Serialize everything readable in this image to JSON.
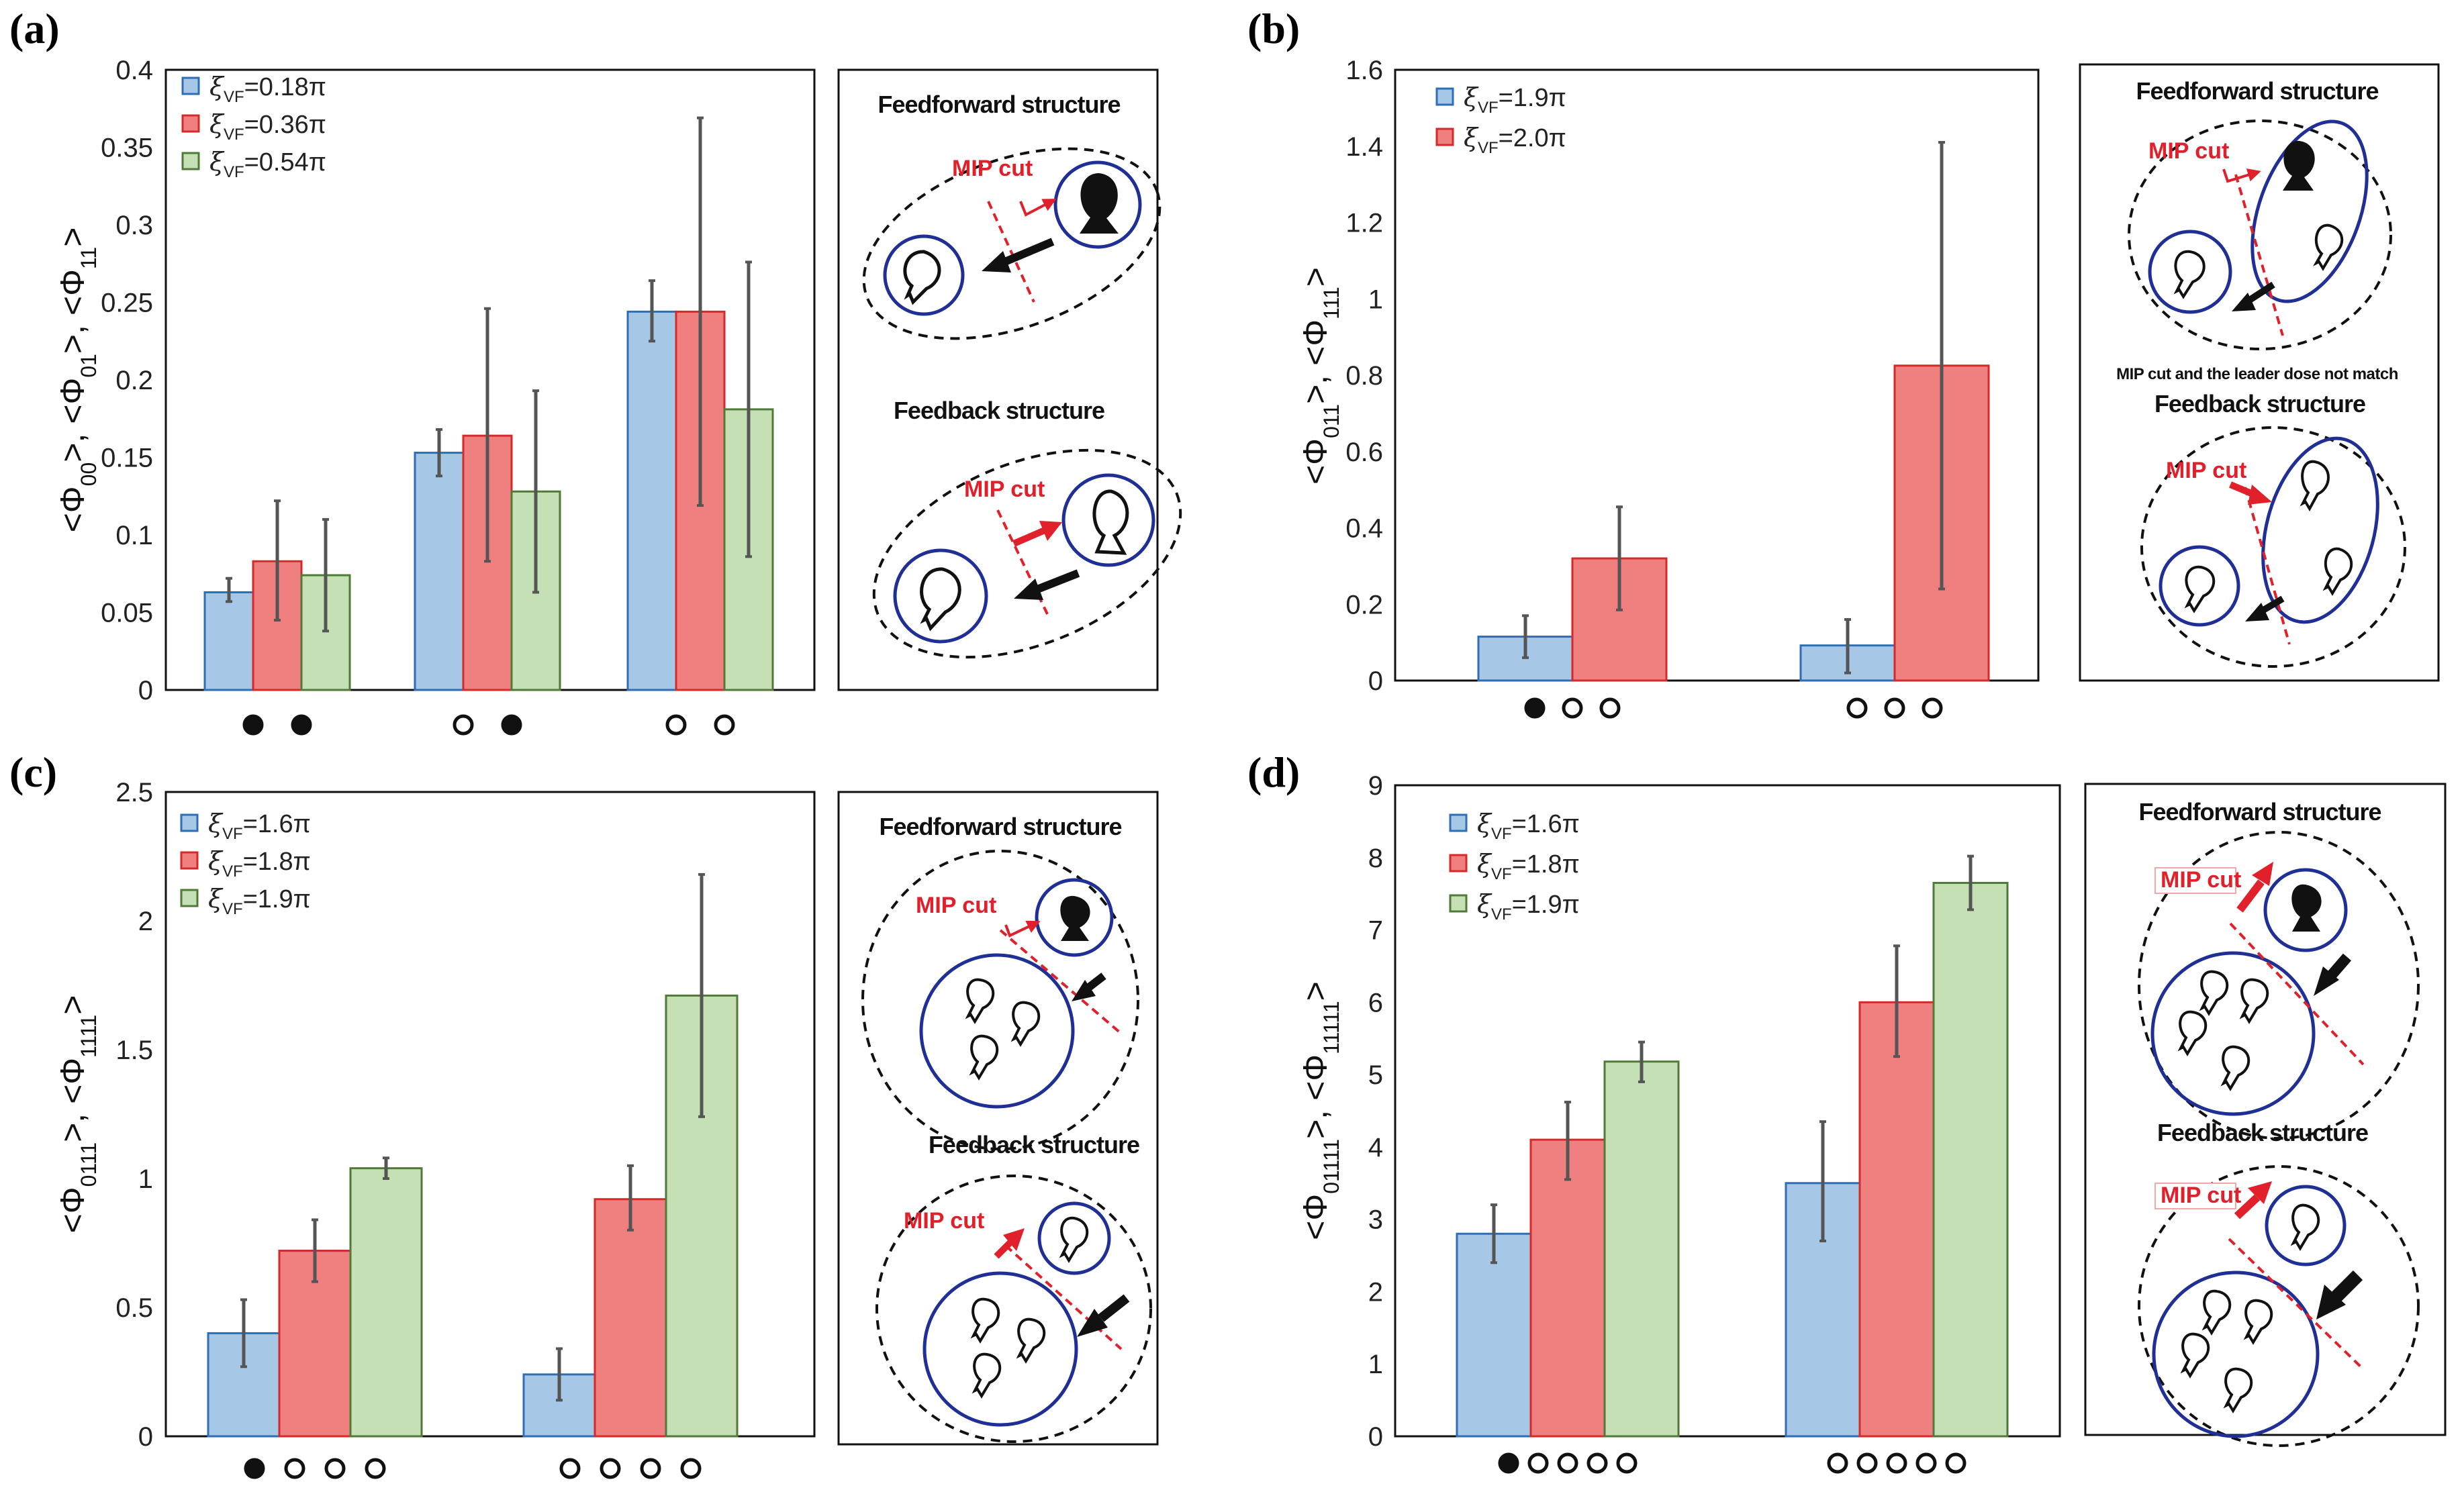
{
  "colors": {
    "blue": "#a6c8e6",
    "blue_edge": "#2f6eb5",
    "red": "#f08080",
    "red_edge": "#d42a2a",
    "green": "#c5e0b4",
    "green_edge": "#4f7a38",
    "error": "#555555",
    "diagram_circle": "#1f2f96",
    "mip": "#e0202a"
  },
  "panels": {
    "a": {
      "letter": "(a)",
      "legend_prefix": "ξ",
      "legend_sub": "VF",
      "ylabel": [
        "<Φ",
        "00",
        ">, <Φ",
        "01",
        ">, <Φ",
        "11",
        ">"
      ]
    },
    "b": {
      "letter": "(b)",
      "legend_prefix": "ξ",
      "legend_sub": "VF",
      "ylabel": [
        "<Φ",
        "011",
        ">, <Φ",
        "111",
        ">"
      ]
    },
    "c": {
      "letter": "(c)",
      "legend_prefix": "ξ",
      "legend_sub": "VF",
      "ylabel": [
        "<Φ",
        "0111",
        ">, <Φ",
        "1111",
        ">"
      ]
    },
    "d": {
      "letter": "(d)",
      "legend_prefix": "ξ",
      "legend_sub": "VF",
      "ylabel": [
        "<Φ",
        "01111",
        ">, <Φ",
        "11111",
        ">"
      ]
    }
  },
  "chart_data": [
    {
      "id": "a",
      "type": "bar",
      "ylim": [
        0,
        0.4
      ],
      "yticks": [
        "0",
        "0.05",
        "0.1",
        "0.15",
        "0.2",
        "0.25",
        "0.3",
        "0.35",
        "0.4"
      ],
      "categories": [
        [
          1,
          1
        ],
        [
          0,
          1
        ],
        [
          0,
          0
        ]
      ],
      "series": [
        {
          "name": "=0.18π",
          "color": "blue",
          "values": [
            0.063,
            0.153,
            0.244
          ],
          "errors": [
            [
              0.057,
              0.072
            ],
            [
              0.138,
              0.168
            ],
            [
              0.225,
              0.264
            ]
          ]
        },
        {
          "name": "=0.36π",
          "color": "red",
          "values": [
            0.083,
            0.164,
            0.244
          ],
          "errors": [
            [
              0.045,
              0.122
            ],
            [
              0.083,
              0.246
            ],
            [
              0.119,
              0.369
            ]
          ]
        },
        {
          "name": "=0.54π",
          "color": "green",
          "values": [
            0.074,
            0.128,
            0.181
          ],
          "errors": [
            [
              0.038,
              0.11
            ],
            [
              0.063,
              0.193
            ],
            [
              0.086,
              0.276
            ]
          ]
        }
      ]
    },
    {
      "id": "b",
      "type": "bar",
      "ylim": [
        0,
        1.6
      ],
      "yticks": [
        "0",
        "0.2",
        "0.4",
        "0.6",
        "0.8",
        "1",
        "1.2",
        "1.4",
        "1.6"
      ],
      "categories": [
        [
          1,
          0,
          0
        ],
        [
          0,
          0,
          0
        ]
      ],
      "series": [
        {
          "name": "=1.9π",
          "color": "blue",
          "values": [
            0.115,
            0.092
          ],
          "errors": [
            [
              0.06,
              0.17
            ],
            [
              0.02,
              0.16
            ]
          ]
        },
        {
          "name": "=2.0π",
          "color": "red",
          "values": [
            0.32,
            0.825
          ],
          "errors": [
            [
              0.185,
              0.455
            ],
            [
              0.24,
              1.41
            ]
          ]
        }
      ]
    },
    {
      "id": "c",
      "type": "bar",
      "ylim": [
        0,
        2.5
      ],
      "yticks": [
        "0",
        "0.5",
        "1",
        "1.5",
        "2",
        "2.5"
      ],
      "categories": [
        [
          1,
          0,
          0,
          0
        ],
        [
          0,
          0,
          0,
          0
        ]
      ],
      "series": [
        {
          "name": "=1.6π",
          "color": "blue",
          "values": [
            0.4,
            0.24
          ],
          "errors": [
            [
              0.27,
              0.53
            ],
            [
              0.14,
              0.34
            ]
          ]
        },
        {
          "name": "=1.8π",
          "color": "red",
          "values": [
            0.72,
            0.92
          ],
          "errors": [
            [
              0.6,
              0.84
            ],
            [
              0.8,
              1.05
            ]
          ]
        },
        {
          "name": "=1.9π",
          "color": "green",
          "values": [
            1.04,
            1.71
          ],
          "errors": [
            [
              1.0,
              1.08
            ],
            [
              1.24,
              2.18
            ]
          ]
        }
      ]
    },
    {
      "id": "d",
      "type": "bar",
      "ylim": [
        0,
        9
      ],
      "yticks": [
        "0",
        "1",
        "2",
        "3",
        "4",
        "5",
        "6",
        "7",
        "8",
        "9"
      ],
      "categories": [
        [
          1,
          0,
          0,
          0,
          0
        ],
        [
          0,
          0,
          0,
          0,
          0
        ]
      ],
      "series": [
        {
          "name": "=1.6π",
          "color": "blue",
          "values": [
            2.8,
            3.5
          ],
          "errors": [
            [
              2.4,
              3.2
            ],
            [
              2.7,
              4.35
            ]
          ]
        },
        {
          "name": "=1.8π",
          "color": "red",
          "values": [
            4.1,
            6.0
          ],
          "errors": [
            [
              3.55,
              4.62
            ],
            [
              5.25,
              6.78
            ]
          ]
        },
        {
          "name": "=1.9π",
          "color": "green",
          "values": [
            5.18,
            7.65
          ],
          "errors": [
            [
              4.9,
              5.45
            ],
            [
              7.28,
              8.02
            ]
          ]
        }
      ]
    }
  ],
  "diagrams": {
    "a": {
      "top_title": "Feedforward structure",
      "bottom_title": "Feedback structure",
      "mip": "MIP cut"
    },
    "b": {
      "top_title": "Feedforward structure",
      "bottom_title": "Feedback structure",
      "mip": "MIP cut",
      "note": "MIP cut and the leader dose not match"
    },
    "c": {
      "top_title": "Feedforward structure",
      "bottom_title": "Feedback structure",
      "mip": "MIP cut"
    },
    "d": {
      "top_title": "Feedforward structure",
      "bottom_title": "Feedback structure",
      "mip": "MIP cut"
    }
  }
}
